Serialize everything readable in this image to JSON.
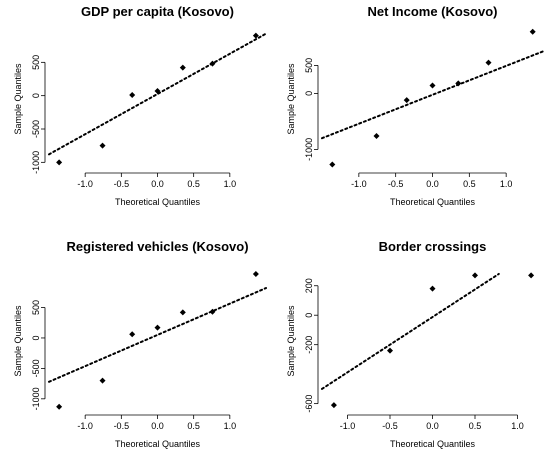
{
  "chart_data": [
    {
      "type": "scatter",
      "title": "GDP per capita (Kosovo)",
      "xlabel": "Theoretical Quantiles",
      "ylabel": "Sample Quantiles",
      "xlim": [
        -1.5,
        1.5
      ],
      "ylim": [
        -1100,
        1000
      ],
      "xticks": [
        "-1.0",
        "-0.5",
        "0.0",
        "0.5",
        "1.0"
      ],
      "xtick_values": [
        -1.0,
        -0.5,
        0.0,
        0.5,
        1.0
      ],
      "yticks": [
        "-1000",
        "-500",
        "0",
        "500"
      ],
      "ytick_values": [
        -1000,
        -500,
        0,
        500
      ],
      "points": [
        {
          "x": -1.36,
          "y": -1000
        },
        {
          "x": -0.76,
          "y": -750
        },
        {
          "x": -0.35,
          "y": 10
        },
        {
          "x": 0.0,
          "y": 70
        },
        {
          "x": 0.35,
          "y": 420
        },
        {
          "x": 0.76,
          "y": 480
        },
        {
          "x": 1.36,
          "y": 900
        }
      ],
      "reference_line": {
        "x": [
          -1.5,
          1.5
        ],
        "y": [
          -880,
          930
        ]
      },
      "grid": false
    },
    {
      "type": "scatter",
      "title": "Net Income (Kosovo)",
      "xlabel": "Theoretical Quantiles",
      "ylabel": "Sample Quantiles",
      "xlim": [
        -1.5,
        1.5
      ],
      "ylim": [
        -1350,
        1150
      ],
      "xticks": [
        "-1.0",
        "-0.5",
        "0.0",
        "0.5",
        "1.0"
      ],
      "xtick_values": [
        -1.0,
        -0.5,
        0.0,
        0.5,
        1.0
      ],
      "yticks": [
        "-1000",
        "0",
        "500"
      ],
      "ytick_values": [
        -1000,
        0,
        500
      ],
      "points": [
        {
          "x": -1.36,
          "y": -1270
        },
        {
          "x": -0.76,
          "y": -760
        },
        {
          "x": -0.35,
          "y": -120
        },
        {
          "x": 0.0,
          "y": 140
        },
        {
          "x": 0.35,
          "y": 180
        },
        {
          "x": 0.76,
          "y": 550
        },
        {
          "x": 1.36,
          "y": 1100
        }
      ],
      "reference_line": {
        "x": [
          -1.5,
          1.5
        ],
        "y": [
          -800,
          750
        ]
      },
      "grid": false
    },
    {
      "type": "scatter",
      "title": "Registered vehicles (Kosovo)",
      "xlabel": "Theoretical Quantiles",
      "ylabel": "Sample Quantiles",
      "xlim": [
        -1.5,
        1.5
      ],
      "ylim": [
        -1200,
        1100
      ],
      "xticks": [
        "-1.0",
        "-0.5",
        "0.0",
        "0.5",
        "1.0"
      ],
      "xtick_values": [
        -1.0,
        -0.5,
        0.0,
        0.5,
        1.0
      ],
      "yticks": [
        "-1000",
        "-500",
        "0",
        "500"
      ],
      "ytick_values": [
        -1000,
        -500,
        0,
        500
      ],
      "points": [
        {
          "x": -1.36,
          "y": -1130
        },
        {
          "x": -0.76,
          "y": -700
        },
        {
          "x": -0.35,
          "y": 60
        },
        {
          "x": 0.0,
          "y": 170
        },
        {
          "x": 0.35,
          "y": 420
        },
        {
          "x": 0.76,
          "y": 430
        },
        {
          "x": 1.36,
          "y": 1050
        }
      ],
      "reference_line": {
        "x": [
          -1.5,
          1.5
        ],
        "y": [
          -720,
          820
        ]
      },
      "grid": false
    },
    {
      "type": "scatter",
      "title": "Border crossings",
      "xlabel": "Theoretical Quantiles",
      "ylabel": "Sample Quantiles",
      "xlim": [
        -1.3,
        1.3
      ],
      "ylim": [
        -650,
        300
      ],
      "xticks": [
        "-1.0",
        "-0.5",
        "0.0",
        "0.5",
        "1.0"
      ],
      "xtick_values": [
        -1.0,
        -0.5,
        0.0,
        0.5,
        1.0
      ],
      "yticks": [
        "-600",
        "-200",
        "0",
        "200"
      ],
      "ytick_values": [
        -600,
        -200,
        0,
        200
      ],
      "points": [
        {
          "x": -1.16,
          "y": -610
        },
        {
          "x": -0.5,
          "y": -240
        },
        {
          "x": 0.0,
          "y": 180
        },
        {
          "x": 0.5,
          "y": 270
        },
        {
          "x": 1.16,
          "y": 270
        }
      ],
      "reference_line": {
        "x": [
          -1.3,
          0.78
        ],
        "y": [
          -500,
          280
        ]
      },
      "grid": false
    }
  ]
}
